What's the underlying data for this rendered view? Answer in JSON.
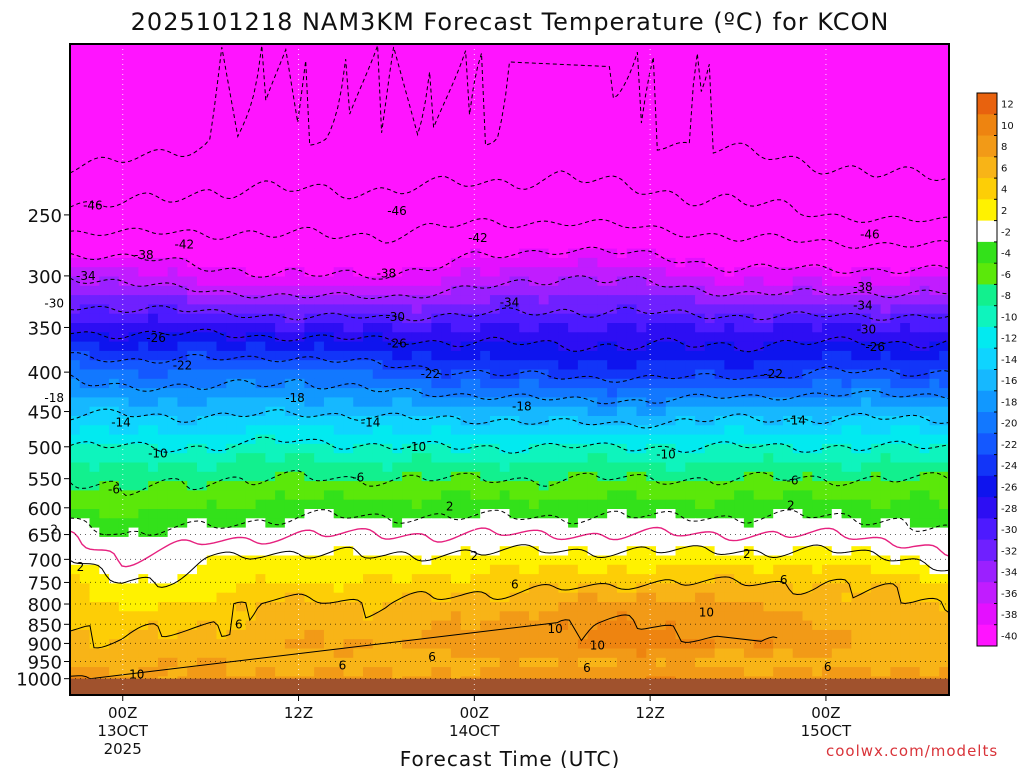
{
  "credit": "coolwx.com/modelts",
  "chart_data": {
    "type": "contour",
    "title": "2025101218 NAM3KM Forecast Temperature (ºC) for KCON",
    "xlabel": "Forecast Time (UTC)",
    "ylabel": "",
    "x_axis": {
      "range_hours": [
        -3,
        47
      ],
      "ticks": [
        {
          "hour": 0,
          "lines": [
            "00Z",
            "13OCT",
            "2025"
          ]
        },
        {
          "hour": 10,
          "lines": [
            "12Z"
          ]
        },
        {
          "hour": 20,
          "lines": [
            "00Z",
            "14OCT"
          ]
        },
        {
          "hour": 30,
          "lines": [
            "12Z"
          ]
        },
        {
          "hour": 40,
          "lines": [
            "00Z",
            "15OCT"
          ]
        }
      ],
      "gridlines": "dotted vertical at each tick"
    },
    "y_axis": {
      "quantity": "pressure (hPa)",
      "scale": "log, inverted",
      "range": [
        1050,
        150
      ],
      "ticks": [
        250,
        300,
        350,
        400,
        450,
        500,
        550,
        600,
        650,
        700,
        750,
        800,
        850,
        900,
        950,
        1000
      ],
      "gridlines": "dotted horizontal at 650-1000"
    },
    "colorbar": {
      "position": "right",
      "levels": [
        12,
        10,
        8,
        6,
        4,
        2,
        -2,
        -4,
        -6,
        -8,
        -10,
        -12,
        -14,
        -16,
        -18,
        -20,
        -22,
        -24,
        -26,
        -28,
        -30,
        -32,
        -34,
        -36,
        -38,
        -40
      ],
      "colors": [
        "#e8620e",
        "#ee8410",
        "#f29a17",
        "#f8b417",
        "#fdce06",
        "#fff200",
        "#ffffff",
        "#33e11a",
        "#5be80a",
        "#12f08e",
        "#0ef4bd",
        "#02eaf0",
        "#0fd4ff",
        "#16b8ff",
        "#1198ff",
        "#1278ff",
        "#1458ff",
        "#1235f8",
        "#0e14ee",
        "#2d0ef3",
        "#4d1aff",
        "#6f20ff",
        "#9b20ff",
        "#c11cff",
        "#e410ff",
        "#ff14ff"
      ]
    },
    "surface_fill": "#a0522d",
    "freezing_line_color": "#e6217f",
    "contour_interval": 4,
    "temperature_field": {
      "description": "Forecast temperature (ºC) at pressure levels for each forecast hour",
      "hours": [
        -3,
        0,
        5,
        10,
        15,
        20,
        25,
        30,
        35,
        40,
        45,
        47
      ],
      "levels_hpa": [
        1000,
        950,
        900,
        850,
        800,
        750,
        700,
        650,
        600,
        550,
        500,
        450,
        400,
        350,
        300,
        250,
        200
      ],
      "values": [
        [
          10,
          9,
          8,
          9,
          8,
          9,
          9,
          10,
          9,
          9,
          9,
          9
        ],
        [
          8,
          7,
          8,
          7,
          7,
          7,
          8,
          8,
          7,
          7,
          7,
          8
        ],
        [
          7,
          6,
          7,
          8,
          8,
          9,
          10,
          11,
          10,
          9,
          7,
          7
        ],
        [
          6,
          5,
          6,
          7,
          7,
          8,
          10,
          10,
          9,
          8,
          7,
          7
        ],
        [
          5,
          3,
          5,
          7,
          6,
          7,
          8,
          9,
          8,
          7,
          6,
          6
        ],
        [
          4,
          2,
          3,
          4,
          4,
          5,
          5,
          6,
          6,
          6,
          5,
          4
        ],
        [
          2,
          0,
          2,
          3,
          2,
          3,
          3,
          3,
          3,
          3,
          2,
          1
        ],
        [
          0,
          -2,
          -1,
          0,
          0,
          0,
          0,
          0,
          0,
          0,
          -1,
          -2
        ],
        [
          -3,
          -5,
          -4,
          -3,
          -3,
          -3,
          -3,
          -3,
          -3,
          -3,
          -3,
          -4
        ],
        [
          -6,
          -7,
          -6,
          -6,
          -6,
          -6,
          -6,
          -6,
          -6,
          -6,
          -6,
          -6
        ],
        [
          -10,
          -10,
          -10,
          -9,
          -10,
          -10,
          -10,
          -10,
          -10,
          -10,
          -10,
          -10
        ],
        [
          -15,
          -14,
          -15,
          -14,
          -15,
          -15,
          -16,
          -16,
          -15,
          -15,
          -15,
          -15
        ],
        [
          -19,
          -20,
          -20,
          -19,
          -21,
          -22,
          -23,
          -23,
          -23,
          -22,
          -22,
          -22
        ],
        [
          -27,
          -27,
          -27,
          -28,
          -28,
          -28,
          -28,
          -28,
          -28,
          -28,
          -28,
          -28
        ],
        [
          -34,
          -35,
          -37,
          -38,
          -38,
          -36,
          -34,
          -35,
          -37,
          -37,
          -37,
          -37
        ],
        [
          -45,
          -45,
          -44,
          -44,
          -44,
          -43,
          -43,
          -44,
          -45,
          -46,
          -47,
          -47
        ],
        [
          -53,
          -52,
          -50,
          -50,
          -50,
          -50,
          -49,
          -50,
          -51,
          -52,
          -53,
          -53
        ]
      ]
    },
    "contour_labels": [
      {
        "text": "-46",
        "hour": -1.7,
        "hpa": 243
      },
      {
        "text": "-46",
        "hour": 15.6,
        "hpa": 247
      },
      {
        "text": "-46",
        "hour": 42.5,
        "hpa": 265
      },
      {
        "text": "-42",
        "hour": 3.5,
        "hpa": 273
      },
      {
        "text": "-42",
        "hour": 20.2,
        "hpa": 268
      },
      {
        "text": "-38",
        "hour": 1.2,
        "hpa": 282
      },
      {
        "text": "-38",
        "hour": 15.0,
        "hpa": 298
      },
      {
        "text": "-38",
        "hour": 42.1,
        "hpa": 310
      },
      {
        "text": "-34",
        "hour": -2.1,
        "hpa": 300
      },
      {
        "text": "-34",
        "hour": 22.0,
        "hpa": 325
      },
      {
        "text": "-34",
        "hour": 42.1,
        "hpa": 328
      },
      {
        "text": "-30",
        "hour": -3.9,
        "hpa": 326
      },
      {
        "text": "-30",
        "hour": 15.5,
        "hpa": 339
      },
      {
        "text": "-30",
        "hour": 42.3,
        "hpa": 352
      },
      {
        "text": "-26",
        "hour": 1.9,
        "hpa": 361
      },
      {
        "text": "-26",
        "hour": 15.6,
        "hpa": 367
      },
      {
        "text": "-26",
        "hour": 42.8,
        "hpa": 371
      },
      {
        "text": "-22",
        "hour": 3.4,
        "hpa": 392
      },
      {
        "text": "-22",
        "hour": 17.5,
        "hpa": 402
      },
      {
        "text": "-22",
        "hour": 37.0,
        "hpa": 402
      },
      {
        "text": "-18",
        "hour": -3.9,
        "hpa": 432
      },
      {
        "text": "-18",
        "hour": 9.8,
        "hpa": 432
      },
      {
        "text": "-18",
        "hour": 22.7,
        "hpa": 443
      },
      {
        "text": "-14",
        "hour": -0.1,
        "hpa": 465
      },
      {
        "text": "-14",
        "hour": 14.1,
        "hpa": 465
      },
      {
        "text": "-14",
        "hour": 38.3,
        "hpa": 462
      },
      {
        "text": "-10",
        "hour": 2.0,
        "hpa": 510
      },
      {
        "text": "-10",
        "hour": 16.7,
        "hpa": 500
      },
      {
        "text": "-10",
        "hour": 30.9,
        "hpa": 512
      },
      {
        "text": "-6",
        "hour": 13.4,
        "hpa": 548
      },
      {
        "text": "-6",
        "hour": -0.5,
        "hpa": 568
      },
      {
        "text": "-6",
        "hour": 38.1,
        "hpa": 553
      },
      {
        "text": "2",
        "hour": -3.9,
        "hpa": 640
      },
      {
        "text": "2",
        "hour": 18.6,
        "hpa": 598
      },
      {
        "text": "2",
        "hour": 38.0,
        "hpa": 596
      },
      {
        "text": "2",
        "hour": 20.0,
        "hpa": 693
      },
      {
        "text": "2",
        "hour": 35.5,
        "hpa": 689
      },
      {
        "text": "2",
        "hour": -2.4,
        "hpa": 716
      },
      {
        "text": "6",
        "hour": 22.3,
        "hpa": 755
      },
      {
        "text": "6",
        "hour": 37.6,
        "hpa": 745
      },
      {
        "text": "6",
        "hour": 6.6,
        "hpa": 850
      },
      {
        "text": "6",
        "hour": 17.6,
        "hpa": 937
      },
      {
        "text": "6",
        "hour": 12.5,
        "hpa": 962
      },
      {
        "text": "6",
        "hour": 26.4,
        "hpa": 968
      },
      {
        "text": "6",
        "hour": 40.1,
        "hpa": 965
      },
      {
        "text": "10",
        "hour": 33.2,
        "hpa": 820
      },
      {
        "text": "10",
        "hour": 24.6,
        "hpa": 862
      },
      {
        "text": "10",
        "hour": 27.0,
        "hpa": 906
      },
      {
        "text": "10",
        "hour": 0.8,
        "hpa": 987
      }
    ]
  }
}
